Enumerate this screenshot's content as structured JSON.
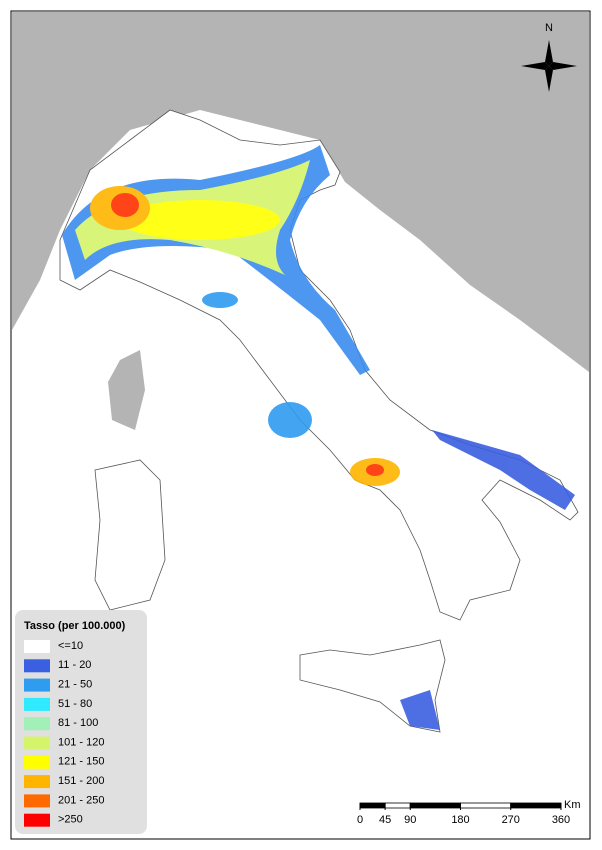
{
  "north": "N",
  "legend": {
    "title": "Tasso (per 100.000)",
    "items": [
      {
        "label": "<=10",
        "color": "#ffffff"
      },
      {
        "label": "11 - 20",
        "color": "#3a5fe0"
      },
      {
        "label": "21 - 50",
        "color": "#2f9cf0"
      },
      {
        "label": "51 - 80",
        "color": "#30eaff"
      },
      {
        "label": "81 - 100",
        "color": "#a0f0b8"
      },
      {
        "label": "101 - 120",
        "color": "#d4f46c"
      },
      {
        "label": "121 - 150",
        "color": "#ffff00"
      },
      {
        "label": "151 - 200",
        "color": "#ffb400"
      },
      {
        "label": "201 - 250",
        "color": "#ff6a00"
      },
      {
        "label": ">250",
        "color": "#ff0000"
      }
    ]
  },
  "scale_bar": {
    "ticks": [
      0,
      45,
      90,
      180,
      270,
      360
    ],
    "unit": "Km"
  }
}
